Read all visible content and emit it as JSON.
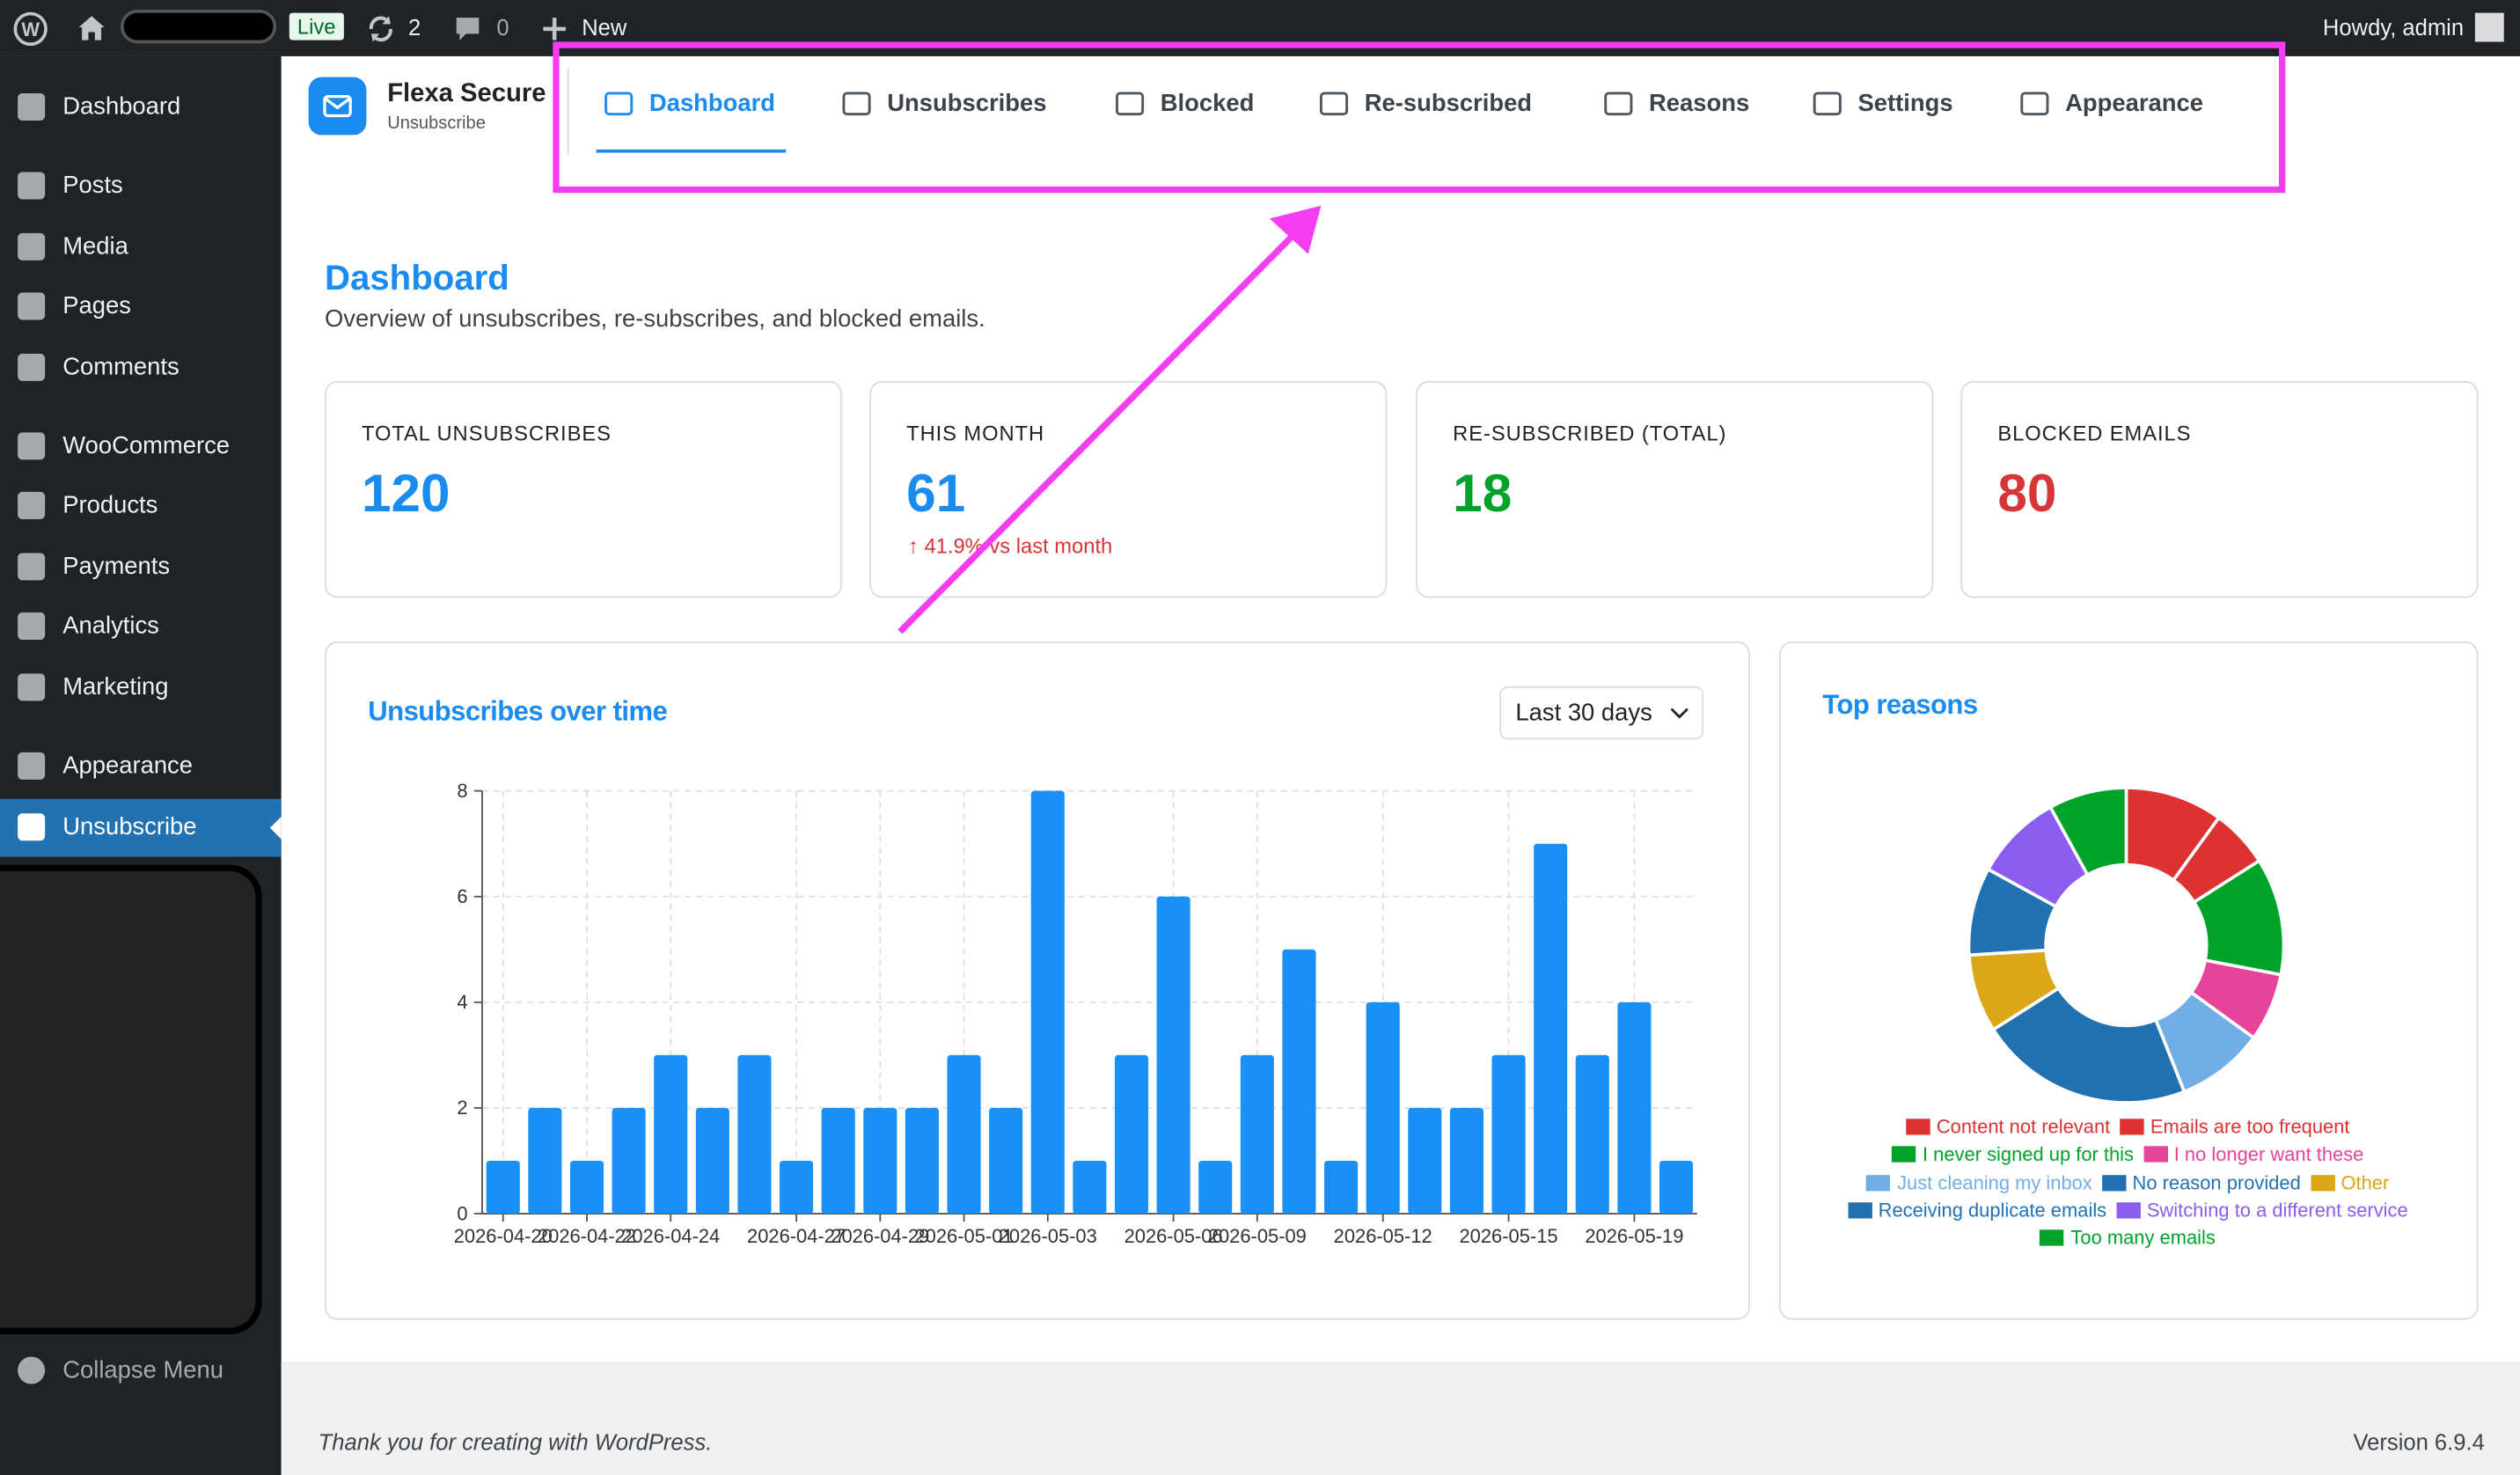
{
  "admin_bar": {
    "badge": "Live",
    "updates": "2",
    "comments": "0",
    "new": "New",
    "greeting": "Howdy, admin"
  },
  "sidebar": {
    "items": [
      "Dashboard",
      "Posts",
      "Media",
      "Pages",
      "Comments",
      "WooCommerce",
      "Products",
      "Payments",
      "Analytics",
      "Marketing",
      "Appearance",
      "Unsubscribe"
    ],
    "active": "Unsubscribe",
    "collapse": "Collapse Menu"
  },
  "plugin": {
    "name": "Flexa Secure",
    "subtitle": "Unsubscribe"
  },
  "tabs": {
    "items": [
      "Dashboard",
      "Unsubscribes",
      "Blocked",
      "Re-subscribed",
      "Reasons",
      "Settings",
      "Appearance"
    ],
    "active": "Dashboard"
  },
  "page": {
    "title": "Dashboard",
    "description": "Overview of unsubscribes, re-subscribes, and blocked emails."
  },
  "stats": [
    {
      "label": "TOTAL UNSUBSCRIBES",
      "value": 120,
      "color": "#1a8cf0"
    },
    {
      "label": "THIS MONTH",
      "value": 61,
      "color": "#1a8cf0",
      "change": "↑ 41.9% vs last month"
    },
    {
      "label": "RE-SUBSCRIBED (TOTAL)",
      "value": 18,
      "color": "#00a32a"
    },
    {
      "label": "BLOCKED EMAILS",
      "value": 80,
      "color": "#d63638"
    }
  ],
  "chart_data": [
    {
      "type": "bar",
      "title": "Unsubscribes over time",
      "filter": "Last 30 days",
      "color": "#1890f5",
      "grid": true,
      "categories": [
        "2026-04-20",
        null,
        "2026-04-22",
        null,
        "2026-04-24",
        null,
        null,
        "2026-04-27",
        null,
        "2026-04-29",
        null,
        "2026-05-01",
        null,
        "2026-05-03",
        null,
        null,
        "2026-05-06",
        null,
        "2026-05-09",
        null,
        null,
        "2026-05-12",
        null,
        null,
        "2026-05-15",
        null,
        null,
        "2026-05-19",
        null
      ],
      "values": [
        1,
        2,
        1,
        2,
        3,
        2,
        3,
        1,
        2,
        2,
        2,
        3,
        2,
        8,
        1,
        3,
        6,
        1,
        3,
        5,
        1,
        4,
        2,
        2,
        3,
        7,
        3,
        4,
        1
      ],
      "ylim": [
        0,
        8
      ],
      "yticks": [
        0,
        2,
        4,
        6,
        8
      ]
    },
    {
      "type": "pie",
      "donut": true,
      "title": "Top reasons",
      "categories": [
        "Content not relevant",
        "Emails are too frequent",
        "I never signed up for this",
        "I no longer want these",
        "Just cleaning my inbox",
        "No reason provided",
        "Other",
        "Receiving duplicate emails",
        "Switching to a different service",
        "Too many emails"
      ],
      "values": [
        10,
        6,
        12,
        7,
        9,
        22,
        8,
        9,
        9,
        8
      ],
      "colors": [
        "#dc3232",
        "#dc3232",
        "#00a32a",
        "#e8439b",
        "#72aee6",
        "#2271b1",
        "#dba617",
        "#2271b1",
        "#8c5cf0",
        "#00a32a"
      ]
    }
  ],
  "footer": {
    "thanks": "Thank you for creating with WordPress.",
    "version": "Version 6.9.4"
  }
}
